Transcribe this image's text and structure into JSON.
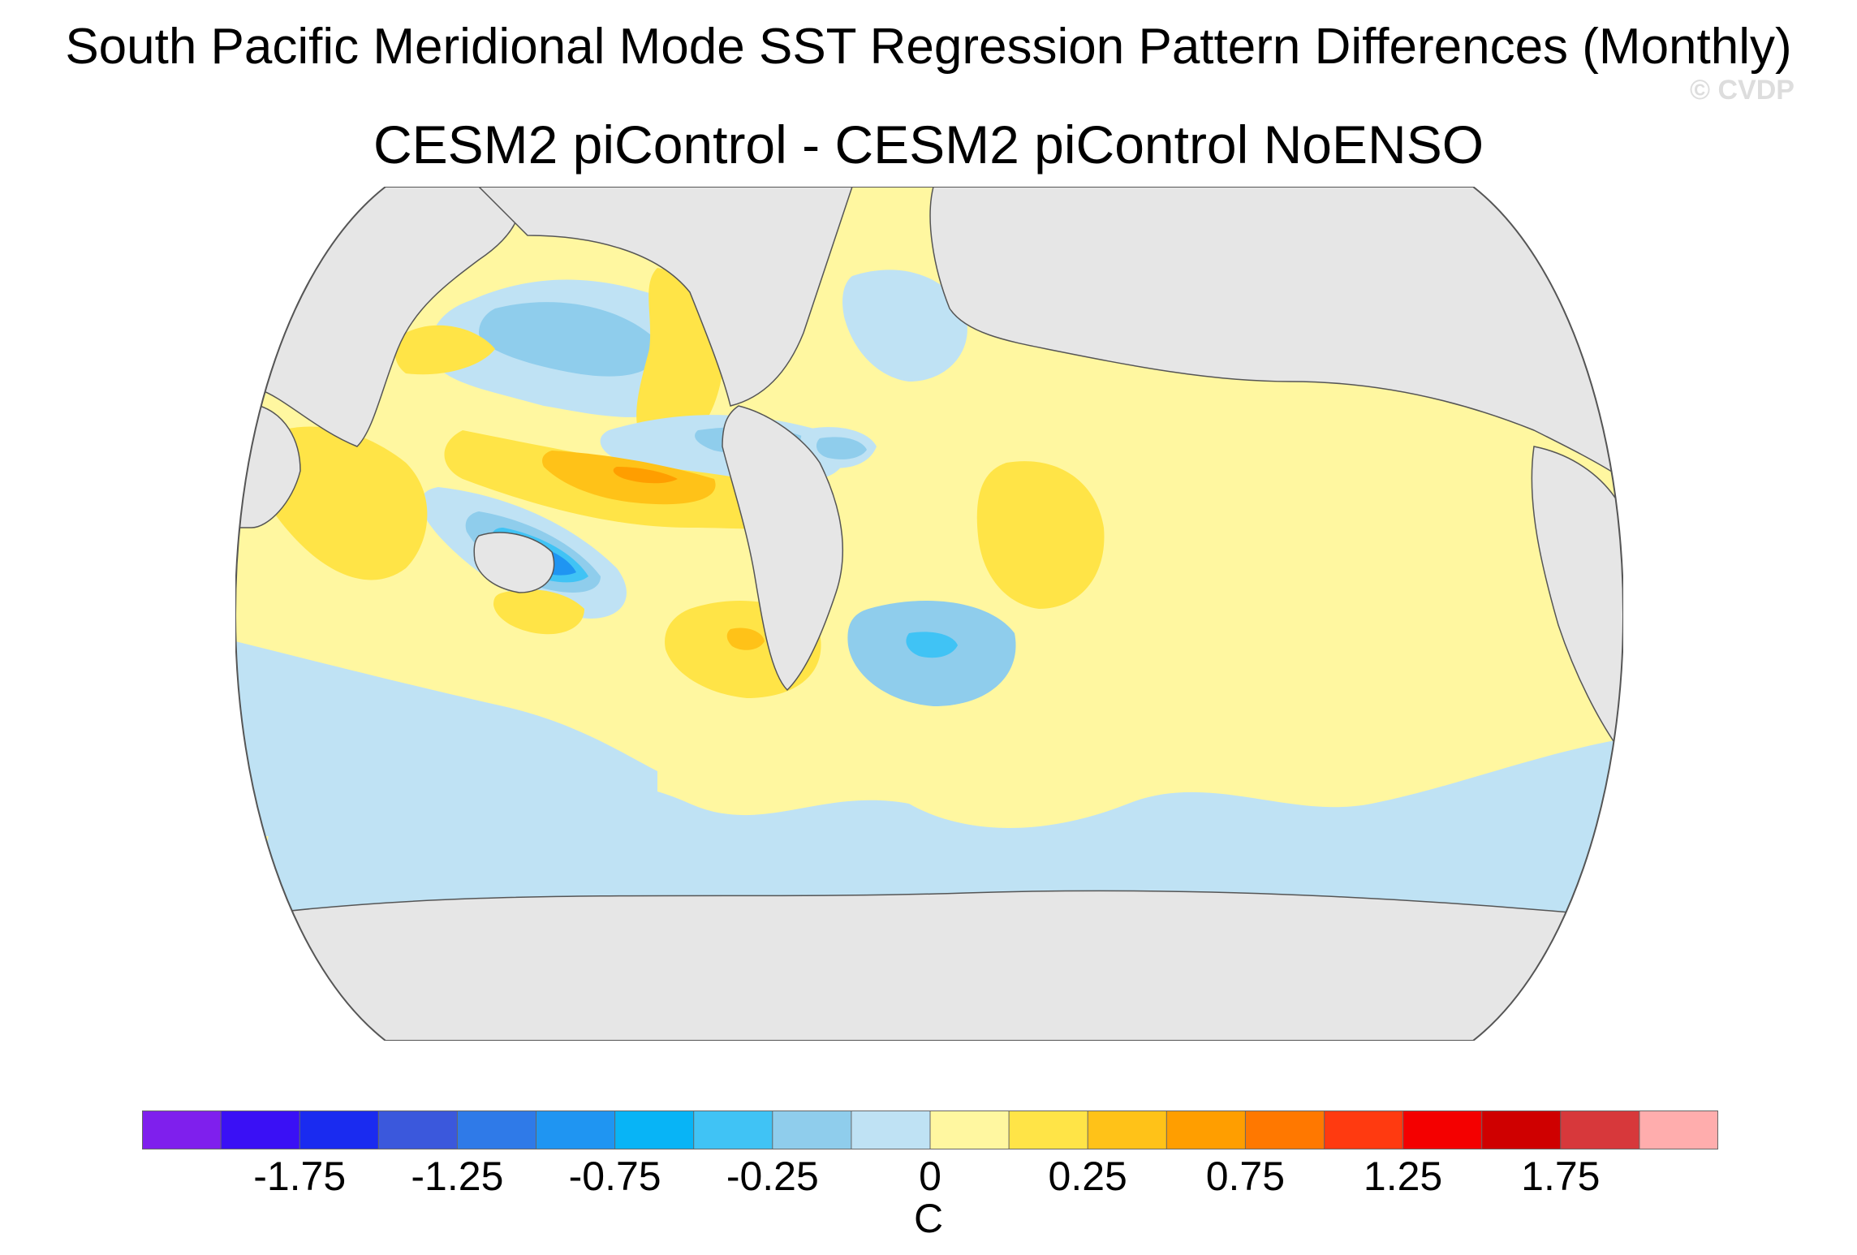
{
  "title": "South Pacific Meridional Mode SST Regression Pattern Differences (Monthly)",
  "subtitle": "CESM2 piControl - CESM2 piControl NoENSO",
  "credit": "© CVDP",
  "colorbar": {
    "colors": [
      "#7f1fed",
      "#3a10f5",
      "#1a2bf0",
      "#3b58dc",
      "#2f7ae8",
      "#1f95f2",
      "#08b4f6",
      "#40c3f5",
      "#8fcdec",
      "#bfe2f4",
      "#fff7a0",
      "#ffe447",
      "#ffc218",
      "#ff9e00",
      "#ff7800",
      "#ff3a10",
      "#f40000",
      "#cf0000",
      "#d7383b",
      "#ffadad"
    ],
    "labels": [
      "-1.75",
      "-1.25",
      "-0.75",
      "-0.25",
      "0",
      "0.25",
      "0.75",
      "1.25",
      "1.75"
    ],
    "units": "C"
  },
  "map": {
    "projection": "robinson",
    "central_longitude": 200,
    "variable": "SST regression difference",
    "ocean_background_class": "0 to 0.25",
    "land_color": "#e6e6e6",
    "features": [
      {
        "name": "south-pacific-negative-core",
        "level": "-0.75 to -0.5"
      },
      {
        "name": "equatorial-pacific-positive-core",
        "level": "0.5 to 0.75"
      },
      {
        "name": "north-pacific-negative",
        "level": "-0.25 to -0.5"
      },
      {
        "name": "southeast-pacific-positive",
        "level": "0.25 to 0.5"
      },
      {
        "name": "south-atlantic-negative",
        "level": "-0.25 to -0.5"
      },
      {
        "name": "indian-ocean-positive",
        "level": "0.25 to 0.5"
      },
      {
        "name": "atlantic-positive",
        "level": "0.25 to 0.5"
      }
    ]
  }
}
